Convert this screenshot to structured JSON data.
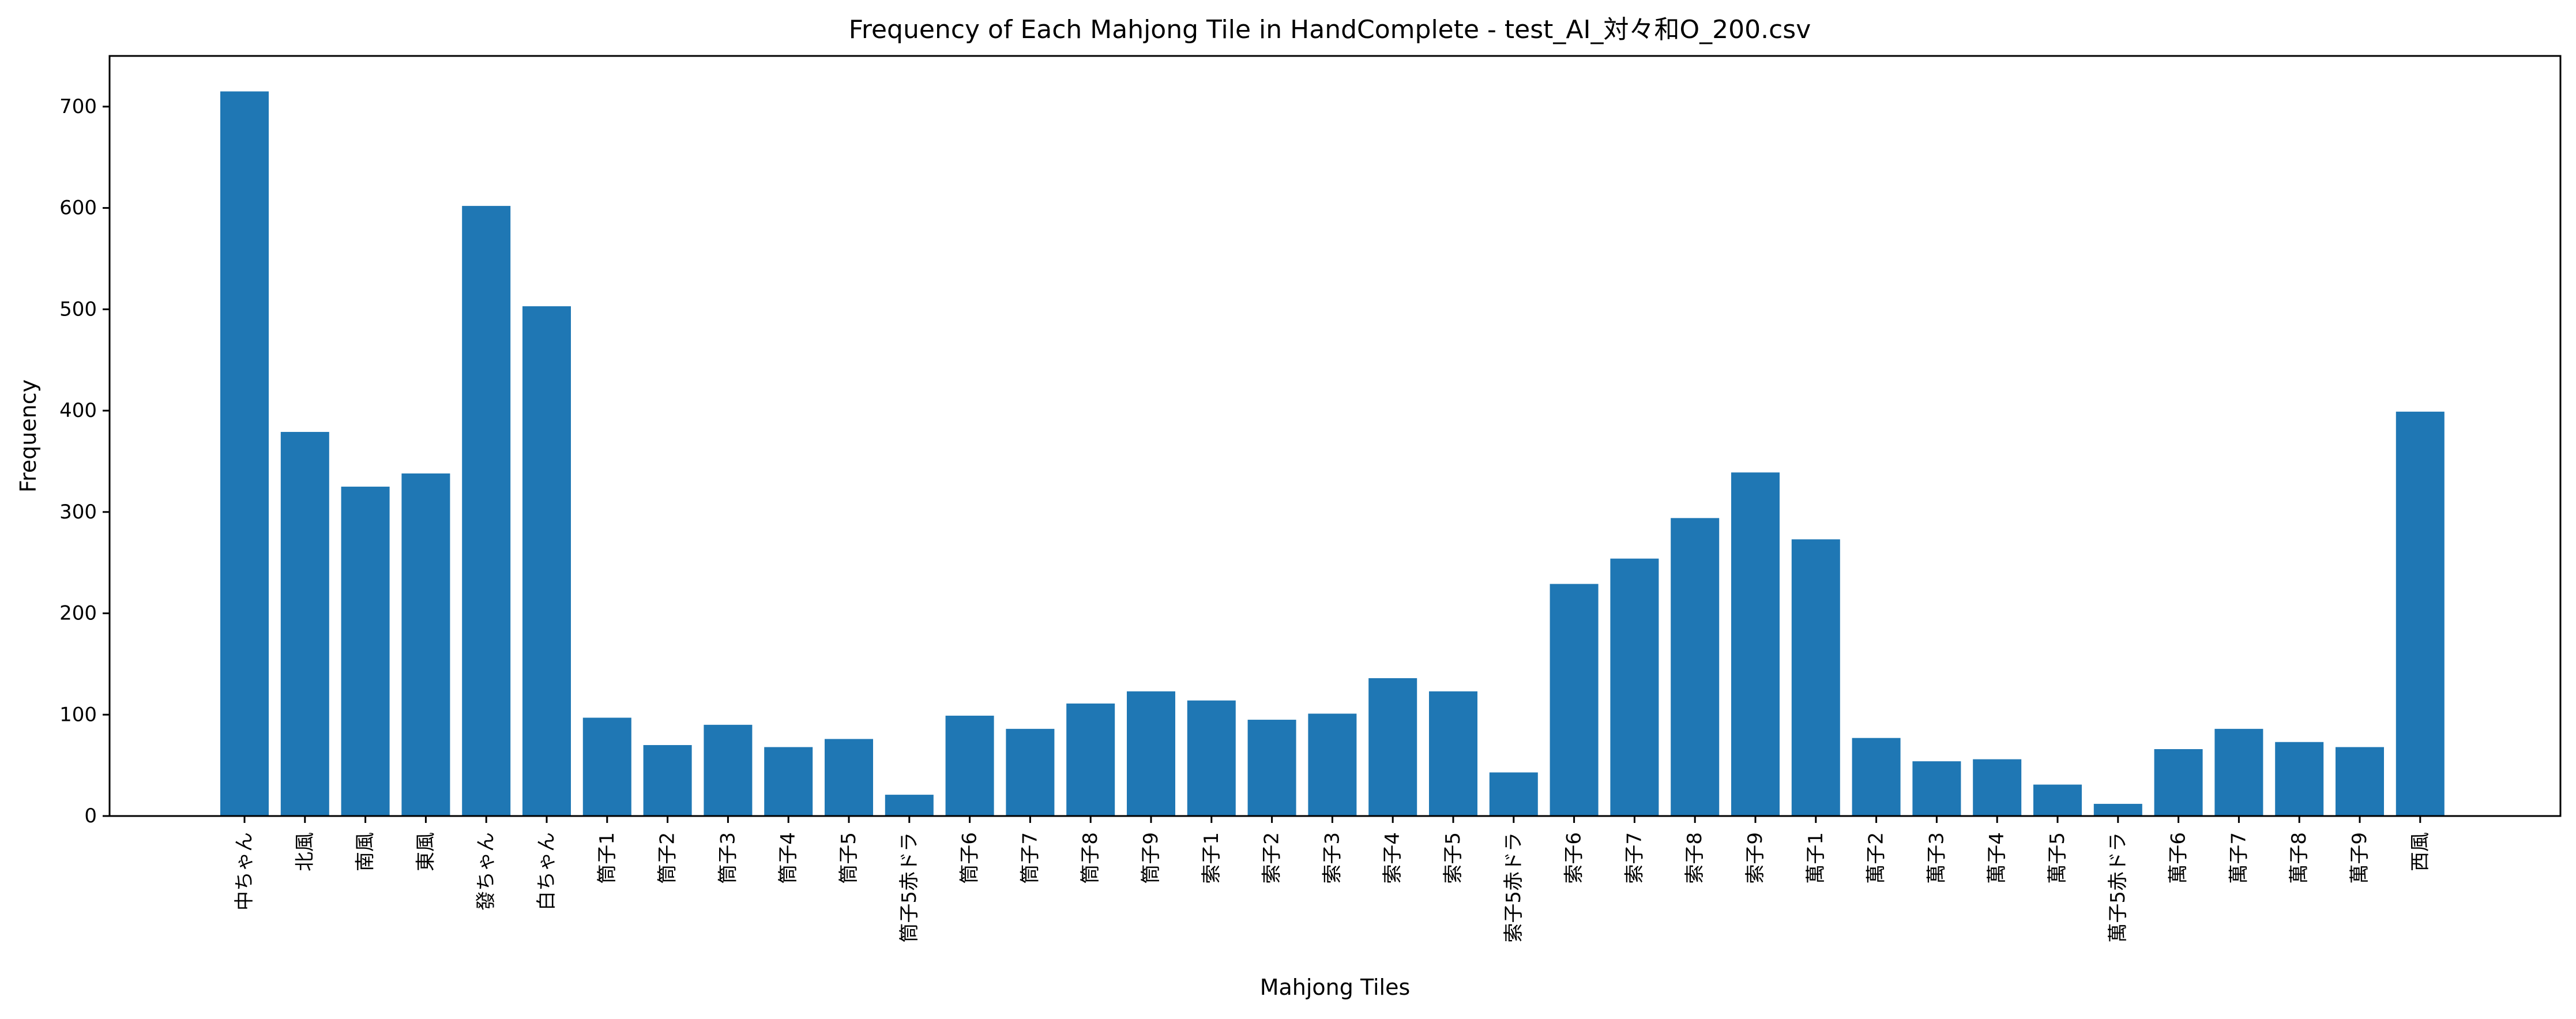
{
  "chart_data": {
    "type": "bar",
    "title": "Frequency of Each Mahjong Tile in HandComplete - test_AI_対々和O_200.csv",
    "xlabel": "Mahjong Tiles",
    "ylabel": "Frequency",
    "ylim": [
      0,
      750
    ],
    "yticks": [
      0,
      100,
      200,
      300,
      400,
      500,
      600,
      700
    ],
    "grid": false,
    "bar_color": "#1f77b4",
    "categories": [
      "中ちゃん",
      "北風",
      "南風",
      "東風",
      "發ちゃん",
      "白ちゃん",
      "筒子1",
      "筒子2",
      "筒子3",
      "筒子4",
      "筒子5",
      "筒子5赤ドラ",
      "筒子6",
      "筒子7",
      "筒子8",
      "筒子9",
      "索子1",
      "索子2",
      "索子3",
      "索子4",
      "索子5",
      "索子5赤ドラ",
      "索子6",
      "索子7",
      "索子8",
      "索子9",
      "萬子1",
      "萬子2",
      "萬子3",
      "萬子4",
      "萬子5",
      "萬子5赤ドラ",
      "萬子6",
      "萬子7",
      "萬子8",
      "萬子9",
      "西風"
    ],
    "values": [
      715,
      379,
      325,
      338,
      602,
      503,
      97,
      70,
      90,
      68,
      76,
      21,
      99,
      86,
      111,
      123,
      114,
      95,
      101,
      136,
      123,
      43,
      229,
      254,
      294,
      339,
      273,
      77,
      54,
      56,
      31,
      12,
      66,
      86,
      73,
      68,
      399
    ]
  }
}
